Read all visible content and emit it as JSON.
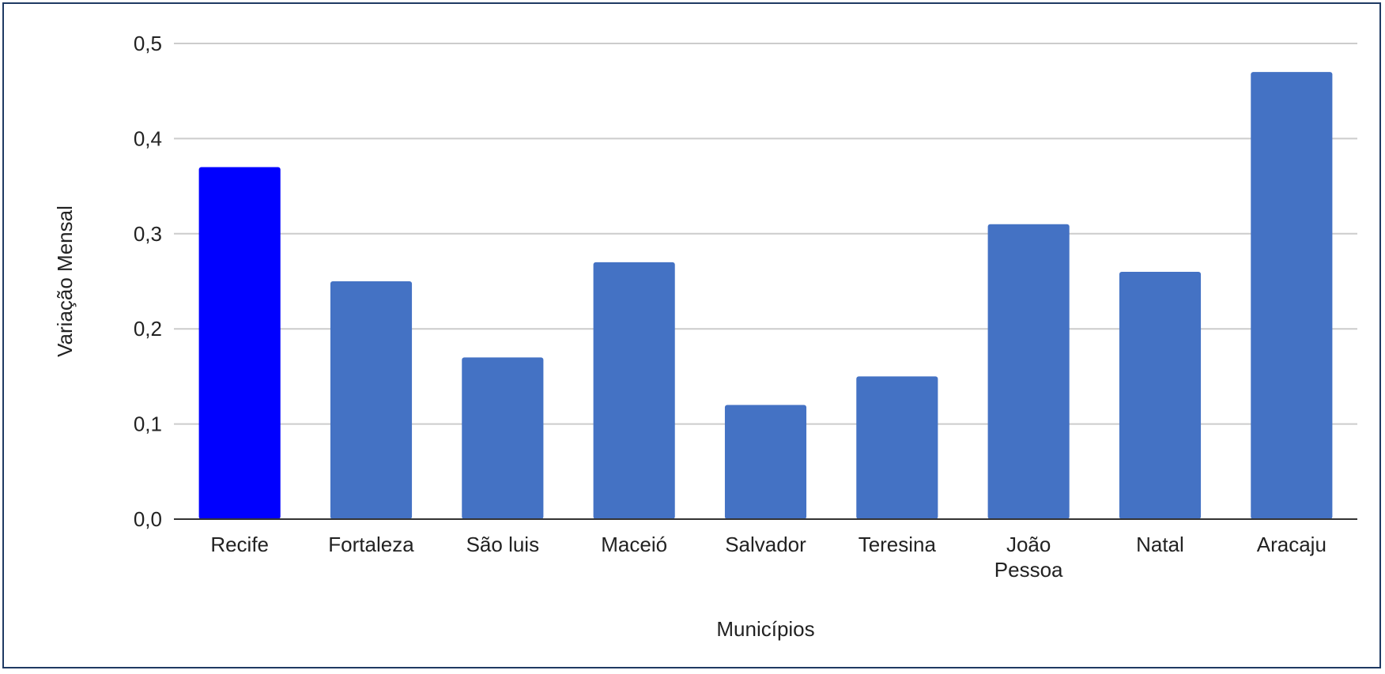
{
  "chart_data": {
    "type": "bar",
    "title": "",
    "xlabel": "Municípios",
    "ylabel": "Variação Mensal",
    "ylim": [
      0,
      0.5
    ],
    "yticks": [
      "0,0",
      "0,1",
      "0,2",
      "0,3",
      "0,4",
      "0,5"
    ],
    "grid": true,
    "categories": [
      "Recife",
      "Fortaleza",
      "São luis",
      "Maceió",
      "Salvador",
      "Teresina",
      "João Pessoa",
      "Natal",
      "Aracaju"
    ],
    "category_lines": [
      [
        "Recife"
      ],
      [
        "Fortaleza"
      ],
      [
        "São luis"
      ],
      [
        "Maceió"
      ],
      [
        "Salvador"
      ],
      [
        "Teresina"
      ],
      [
        "João",
        "Pessoa"
      ],
      [
        "Natal"
      ],
      [
        "Aracaju"
      ]
    ],
    "values": [
      0.37,
      0.25,
      0.17,
      0.27,
      0.12,
      0.15,
      0.31,
      0.26,
      0.47
    ],
    "colors": [
      "#0000ff",
      "#4472c4",
      "#4472c4",
      "#4472c4",
      "#4472c4",
      "#4472c4",
      "#4472c4",
      "#4472c4",
      "#4472c4"
    ],
    "gridline_color": "#cccccc",
    "axis_color": "#333333"
  }
}
